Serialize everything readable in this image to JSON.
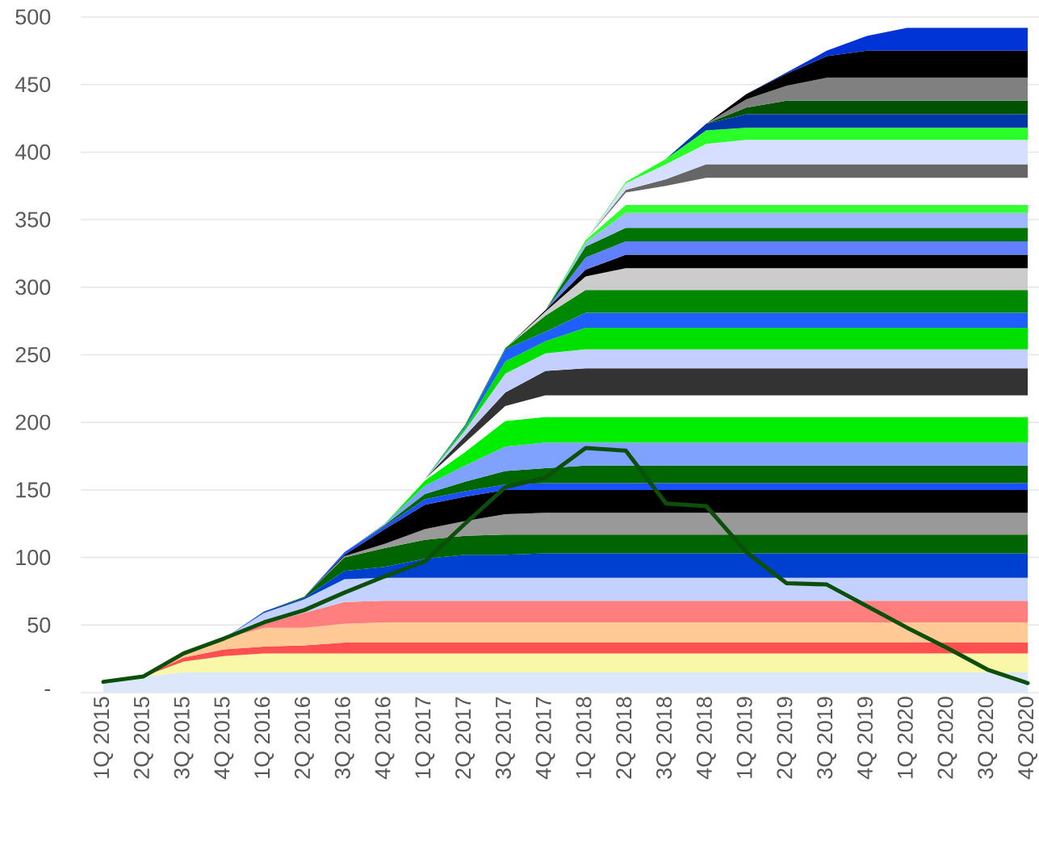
{
  "chart_data": {
    "type": "area",
    "stacked": true,
    "grid": "y",
    "categories": [
      "1Q 2015",
      "2Q 2015",
      "3Q 2015",
      "4Q 2015",
      "1Q 2016",
      "2Q 2016",
      "3Q 2016",
      "4Q 2016",
      "1Q 2017",
      "2Q 2017",
      "3Q 2017",
      "4Q 2017",
      "1Q 2018",
      "2Q 2018",
      "3Q 2018",
      "4Q 2018",
      "1Q 2019",
      "2Q 2019",
      "3Q 2019",
      "4Q 2019",
      "1Q 2020",
      "2Q 2020",
      "3Q 2020",
      "4Q 2020"
    ],
    "ylim": [
      0,
      500
    ],
    "yticks": [
      {
        "value": 0,
        "label": "-"
      },
      50,
      100,
      150,
      200,
      250,
      300,
      350,
      400,
      450,
      500
    ],
    "series": [
      {
        "color": "#dde7fb",
        "values": [
          8,
          12,
          15,
          15,
          15,
          15,
          15,
          15,
          15,
          15,
          15,
          15,
          15,
          15,
          15,
          15,
          15,
          15,
          15,
          15,
          15,
          15,
          15,
          15
        ]
      },
      {
        "color": "#f8f8a8",
        "values": [
          0,
          0,
          8,
          12,
          14,
          14,
          14,
          14,
          14,
          14,
          14,
          14,
          14,
          14,
          14,
          14,
          14,
          14,
          14,
          14,
          14,
          14,
          14,
          14
        ]
      },
      {
        "color": "#ff5050",
        "values": [
          0,
          0,
          3,
          5,
          5,
          6,
          8,
          8,
          8,
          8,
          8,
          8,
          8,
          8,
          8,
          8,
          8,
          8,
          8,
          8,
          8,
          8,
          8,
          8
        ]
      },
      {
        "color": "#ffca96",
        "values": [
          0,
          0,
          3,
          8,
          14,
          13,
          14,
          15,
          15,
          15,
          15,
          15,
          15,
          15,
          15,
          15,
          15,
          15,
          15,
          15,
          15,
          15,
          15,
          15
        ]
      },
      {
        "color": "#ff7f7f",
        "values": [
          0,
          0,
          0,
          0,
          3,
          11,
          16,
          16,
          16,
          16,
          16,
          16,
          16,
          16,
          16,
          16,
          16,
          16,
          16,
          16,
          16,
          16,
          16,
          16
        ]
      },
      {
        "color": "#c2d1ff",
        "values": [
          0,
          0,
          0,
          0,
          8,
          10,
          17,
          17,
          17,
          17,
          17,
          17,
          17,
          17,
          17,
          17,
          17,
          17,
          17,
          17,
          17,
          17,
          17,
          17
        ]
      },
      {
        "color": "#0040d0",
        "values": [
          0,
          0,
          0,
          0,
          1,
          1,
          6,
          8,
          14,
          17,
          17,
          18,
          18,
          18,
          18,
          18,
          18,
          18,
          18,
          18,
          18,
          18,
          18,
          18
        ]
      },
      {
        "color": "#006400",
        "values": [
          0,
          0,
          0,
          0,
          0,
          1,
          10,
          14,
          14,
          14,
          15,
          14,
          14,
          14,
          14,
          14,
          14,
          14,
          14,
          14,
          14,
          14,
          14,
          14
        ]
      },
      {
        "color": "#999999",
        "values": [
          0,
          0,
          0,
          0,
          0,
          0,
          1,
          3,
          8,
          11,
          15,
          16,
          16,
          16,
          16,
          16,
          16,
          16,
          16,
          16,
          16,
          16,
          16,
          16
        ]
      },
      {
        "color": "#000000",
        "values": [
          0,
          0,
          0,
          0,
          0,
          0,
          1,
          11,
          18,
          18,
          18,
          17,
          17,
          17,
          17,
          17,
          17,
          17,
          17,
          17,
          17,
          17,
          17,
          17
        ]
      },
      {
        "color": "#1a50ff",
        "values": [
          0,
          0,
          0,
          0,
          0,
          0,
          2,
          2,
          4,
          4,
          4,
          5,
          5,
          5,
          5,
          5,
          5,
          5,
          5,
          5,
          5,
          5,
          5,
          5
        ]
      },
      {
        "color": "#006600",
        "values": [
          0,
          0,
          0,
          0,
          0,
          0,
          0,
          1,
          4,
          7,
          10,
          11,
          13,
          13,
          13,
          13,
          13,
          13,
          13,
          13,
          13,
          13,
          13,
          13
        ]
      },
      {
        "color": "#80a2ff",
        "values": [
          0,
          0,
          0,
          0,
          0,
          0,
          0,
          1,
          6,
          12,
          18,
          19,
          17,
          17,
          17,
          17,
          17,
          17,
          17,
          17,
          17,
          17,
          17,
          17
        ]
      },
      {
        "color": "#00ee00",
        "values": [
          0,
          0,
          0,
          0,
          0,
          0,
          0,
          0,
          4,
          10,
          19,
          19,
          19,
          19,
          19,
          19,
          19,
          19,
          19,
          19,
          19,
          19,
          19,
          19
        ]
      },
      {
        "color": "#ffffff",
        "values": [
          0,
          0,
          0,
          0,
          0,
          0,
          0,
          0,
          1,
          7,
          11,
          16,
          16,
          16,
          16,
          16,
          16,
          16,
          16,
          16,
          16,
          16,
          16,
          16
        ]
      },
      {
        "color": "#333333",
        "values": [
          0,
          0,
          0,
          0,
          0,
          0,
          0,
          0,
          0,
          5,
          10,
          18,
          20,
          20,
          20,
          20,
          20,
          20,
          20,
          20,
          20,
          20,
          20,
          20
        ]
      },
      {
        "color": "#c5cfff",
        "values": [
          0,
          0,
          0,
          0,
          0,
          0,
          0,
          0,
          0,
          4,
          14,
          13,
          14,
          14,
          14,
          14,
          14,
          14,
          14,
          14,
          14,
          14,
          14,
          14
        ]
      },
      {
        "color": "#00e000",
        "values": [
          0,
          0,
          0,
          0,
          0,
          0,
          0,
          0,
          0,
          2,
          9,
          9,
          16,
          16,
          16,
          16,
          16,
          16,
          16,
          16,
          16,
          16,
          16,
          16
        ]
      },
      {
        "color": "#1f5fff",
        "values": [
          0,
          0,
          0,
          0,
          0,
          0,
          0,
          0,
          0,
          1,
          9,
          7,
          11,
          11,
          11,
          11,
          11,
          11,
          11,
          11,
          11,
          11,
          11,
          11
        ]
      },
      {
        "color": "#008800",
        "values": [
          0,
          0,
          0,
          0,
          0,
          0,
          0,
          0,
          0,
          1,
          1,
          12,
          17,
          17,
          17,
          17,
          17,
          17,
          17,
          17,
          17,
          17,
          17,
          17
        ]
      },
      {
        "color": "#cccccc",
        "values": [
          0,
          0,
          0,
          0,
          0,
          0,
          0,
          0,
          0,
          0,
          0,
          3,
          10,
          16,
          16,
          16,
          16,
          16,
          16,
          16,
          16,
          16,
          16,
          16
        ]
      },
      {
        "color": "#000000",
        "values": [
          0,
          0,
          0,
          0,
          0,
          0,
          0,
          0,
          0,
          0,
          0,
          1,
          5,
          10,
          10,
          10,
          10,
          10,
          10,
          10,
          10,
          10,
          10,
          10
        ]
      },
      {
        "color": "#6080ff",
        "values": [
          0,
          0,
          0,
          0,
          0,
          0,
          0,
          0,
          0,
          0,
          0,
          0,
          9,
          10,
          10,
          10,
          10,
          10,
          10,
          10,
          10,
          10,
          10,
          10
        ]
      },
      {
        "color": "#007300",
        "values": [
          0,
          0,
          0,
          0,
          0,
          0,
          0,
          0,
          0,
          0,
          0,
          0,
          8,
          10,
          10,
          10,
          10,
          10,
          10,
          10,
          10,
          10,
          10,
          10
        ]
      },
      {
        "color": "#a0b8ff",
        "values": [
          0,
          0,
          0,
          0,
          0,
          0,
          0,
          0,
          0,
          0,
          0,
          0,
          3,
          11,
          11,
          11,
          11,
          11,
          11,
          11,
          11,
          11,
          11,
          11
        ]
      },
      {
        "color": "#33ff33",
        "values": [
          0,
          0,
          0,
          0,
          0,
          0,
          0,
          0,
          0,
          0,
          0,
          0,
          2,
          6,
          6,
          6,
          6,
          6,
          6,
          6,
          6,
          6,
          6,
          6
        ]
      },
      {
        "color": "#ffffff",
        "values": [
          0,
          0,
          0,
          0,
          0,
          0,
          0,
          0,
          0,
          0,
          0,
          0,
          0,
          9,
          14,
          20,
          20,
          20,
          20,
          20,
          20,
          20,
          20,
          20
        ]
      },
      {
        "color": "#666666",
        "values": [
          0,
          0,
          0,
          0,
          0,
          0,
          0,
          0,
          0,
          0,
          0,
          0,
          0,
          2,
          5,
          10,
          10,
          10,
          10,
          10,
          10,
          10,
          10,
          10
        ]
      },
      {
        "color": "#d6dfff",
        "values": [
          0,
          0,
          0,
          0,
          0,
          0,
          0,
          0,
          0,
          0,
          0,
          0,
          0,
          5,
          11,
          15,
          18,
          18,
          18,
          18,
          18,
          18,
          18,
          18
        ]
      },
      {
        "color": "#2aff2a",
        "values": [
          0,
          0,
          0,
          0,
          0,
          0,
          0,
          0,
          0,
          0,
          0,
          0,
          0,
          1,
          4,
          10,
          9,
          9,
          9,
          9,
          9,
          9,
          9,
          9
        ]
      },
      {
        "color": "#0036a8",
        "values": [
          0,
          0,
          0,
          0,
          0,
          0,
          0,
          0,
          0,
          0,
          0,
          0,
          0,
          0,
          0,
          5,
          10,
          10,
          10,
          10,
          10,
          10,
          10,
          10
        ]
      },
      {
        "color": "#005200",
        "values": [
          0,
          0,
          0,
          0,
          0,
          0,
          0,
          0,
          0,
          0,
          0,
          0,
          0,
          0,
          0,
          0,
          5,
          10,
          10,
          10,
          10,
          10,
          10,
          10
        ]
      },
      {
        "color": "#808080",
        "values": [
          0,
          0,
          0,
          0,
          0,
          0,
          0,
          0,
          0,
          0,
          0,
          0,
          0,
          0,
          0,
          0,
          6,
          11,
          17,
          17,
          17,
          17,
          17,
          17
        ]
      },
      {
        "color": "#000000",
        "values": [
          0,
          0,
          0,
          0,
          0,
          0,
          0,
          0,
          0,
          0,
          0,
          0,
          0,
          0,
          0,
          0,
          4,
          9,
          16,
          20,
          20,
          20,
          20,
          20
        ]
      },
      {
        "color": "#0033d6",
        "values": [
          0,
          0,
          0,
          0,
          0,
          0,
          0,
          0,
          0,
          0,
          0,
          0,
          0,
          0,
          0,
          0,
          0,
          1,
          4,
          11,
          17,
          17,
          17,
          17
        ]
      },
      {
        "type": "line",
        "color": "#0b4f0b",
        "values": [
          8,
          12,
          29,
          40,
          52,
          61,
          74,
          86,
          97,
          125,
          152,
          159,
          181,
          179,
          140,
          138,
          104,
          81,
          80,
          64,
          48,
          33,
          17,
          7
        ]
      }
    ]
  }
}
